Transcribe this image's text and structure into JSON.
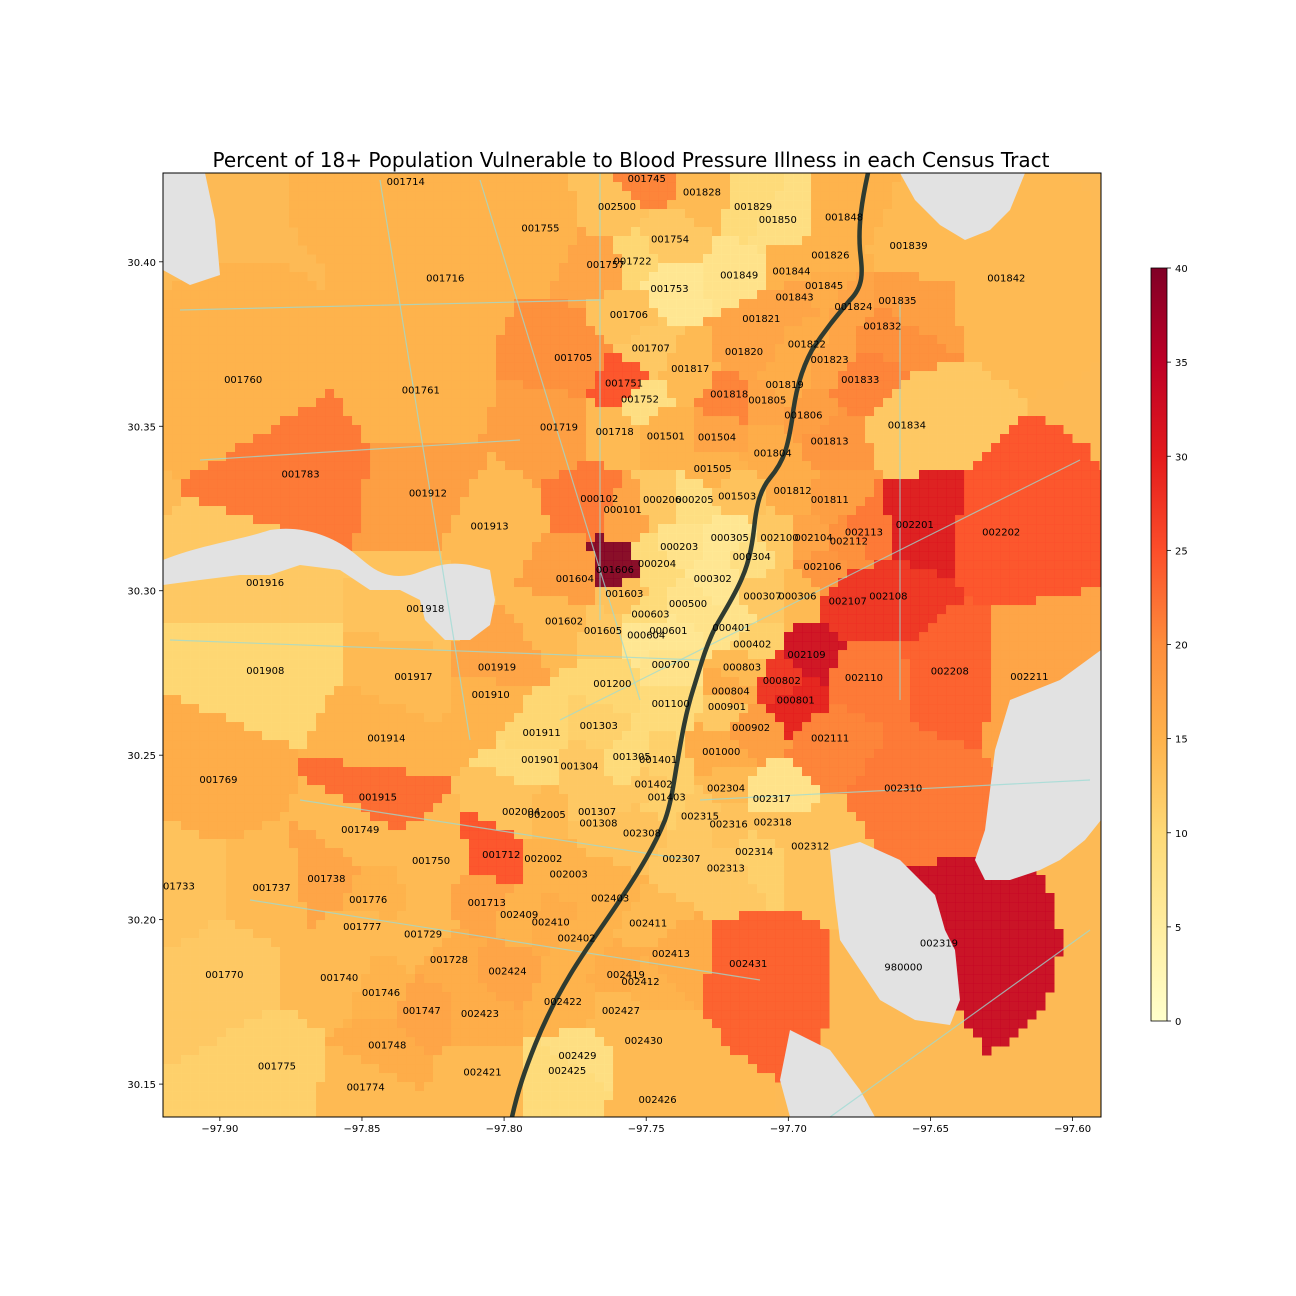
{
  "title": "Percent of 18+ Population Vulnerable to Blood Pressure Illness in each Census Tract",
  "map": {
    "lon_range": [
      -97.92,
      -97.59
    ],
    "lat_range": [
      30.14,
      30.427
    ],
    "x_ticks": [
      {
        "value": -97.9,
        "label": "−97.90"
      },
      {
        "value": -97.85,
        "label": "−97.85"
      },
      {
        "value": -97.8,
        "label": "−97.80"
      },
      {
        "value": -97.75,
        "label": "−97.75"
      },
      {
        "value": -97.7,
        "label": "−97.70"
      },
      {
        "value": -97.65,
        "label": "−97.65"
      },
      {
        "value": -97.6,
        "label": "−97.60"
      }
    ],
    "y_ticks": [
      {
        "value": 30.15,
        "label": "30.15"
      },
      {
        "value": 30.2,
        "label": "30.20"
      },
      {
        "value": 30.25,
        "label": "30.25"
      },
      {
        "value": 30.3,
        "label": "30.30"
      },
      {
        "value": 30.35,
        "label": "30.35"
      },
      {
        "value": 30.4,
        "label": "30.40"
      }
    ],
    "base_color": "#fdba55",
    "water_color": "#e2e2e2",
    "road_color": "#9bdbd4",
    "highway_color": "#2f3b30"
  },
  "colorbar": {
    "min": 0,
    "max": 40,
    "ticks": [
      0,
      5,
      10,
      15,
      20,
      25,
      30,
      35,
      40
    ],
    "colors": [
      "#ffffcc",
      "#ffeda0",
      "#fed976",
      "#feb24c",
      "#fd8d3c",
      "#fc4e2a",
      "#e31a1c",
      "#bd0026",
      "#800026"
    ]
  },
  "tracts": [
    {
      "id": "001714",
      "lon": -97.8346,
      "lat": 30.4242,
      "value": 15
    },
    {
      "id": "001745",
      "lon": -97.7498,
      "lat": 30.4252,
      "value": 21
    },
    {
      "id": "001828",
      "lon": -97.7304,
      "lat": 30.4211,
      "value": 14
    },
    {
      "id": "001829",
      "lon": -97.7124,
      "lat": 30.4166,
      "value": 9
    },
    {
      "id": "002500",
      "lon": -97.7603,
      "lat": 30.4166,
      "value": 13
    },
    {
      "id": "001850",
      "lon": -97.7037,
      "lat": 30.4127,
      "value": 8
    },
    {
      "id": "001848",
      "lon": -97.6804,
      "lat": 30.4134,
      "value": 15
    },
    {
      "id": "001755",
      "lon": -97.7872,
      "lat": 30.4102,
      "value": 15
    },
    {
      "id": "001754",
      "lon": -97.7416,
      "lat": 30.4068,
      "value": 12
    },
    {
      "id": "001839",
      "lon": -97.6577,
      "lat": 30.4048,
      "value": 14
    },
    {
      "id": "001826",
      "lon": -97.6852,
      "lat": 30.4019,
      "value": 15
    },
    {
      "id": "001757",
      "lon": -97.7643,
      "lat": 30.3991,
      "value": 17
    },
    {
      "id": "001722",
      "lon": -97.7548,
      "lat": 30.4001,
      "value": 10
    },
    {
      "id": "001849",
      "lon": -97.7173,
      "lat": 30.3959,
      "value": 7
    },
    {
      "id": "001844",
      "lon": -97.6989,
      "lat": 30.3971,
      "value": 15
    },
    {
      "id": "001716",
      "lon": -97.8207,
      "lat": 30.395,
      "value": 15
    },
    {
      "id": "001842",
      "lon": -97.6233,
      "lat": 30.395,
      "value": 14
    },
    {
      "id": "001845",
      "lon": -97.6874,
      "lat": 30.3926,
      "value": 16
    },
    {
      "id": "001753",
      "lon": -97.7418,
      "lat": 30.3918,
      "value": 6
    },
    {
      "id": "001843",
      "lon": -97.6978,
      "lat": 30.3891,
      "value": 17
    },
    {
      "id": "001835",
      "lon": -97.6616,
      "lat": 30.3881,
      "value": 18
    },
    {
      "id": "001824",
      "lon": -97.6771,
      "lat": 30.3863,
      "value": 17
    },
    {
      "id": "001706",
      "lon": -97.7561,
      "lat": 30.3839,
      "value": 13
    },
    {
      "id": "001821",
      "lon": -97.7095,
      "lat": 30.3826,
      "value": 17
    },
    {
      "id": "001832",
      "lon": -97.6669,
      "lat": 30.3803,
      "value": 20
    },
    {
      "id": "001822",
      "lon": -97.6935,
      "lat": 30.3748,
      "value": 16
    },
    {
      "id": "001707",
      "lon": -97.7484,
      "lat": 30.3736,
      "value": 12
    },
    {
      "id": "001820",
      "lon": -97.7156,
      "lat": 30.3726,
      "value": 17
    },
    {
      "id": "001705",
      "lon": -97.7757,
      "lat": 30.3707,
      "value": 20
    },
    {
      "id": "001823",
      "lon": -97.6855,
      "lat": 30.3702,
      "value": 17
    },
    {
      "id": "001817",
      "lon": -97.7345,
      "lat": 30.3674,
      "value": 14
    },
    {
      "id": "001760",
      "lon": -97.8918,
      "lat": 30.3641,
      "value": 15
    },
    {
      "id": "001833",
      "lon": -97.6747,
      "lat": 30.3641,
      "value": 21
    },
    {
      "id": "001751",
      "lon": -97.7578,
      "lat": 30.363,
      "value": 25
    },
    {
      "id": "001819",
      "lon": -97.7013,
      "lat": 30.3626,
      "value": 16
    },
    {
      "id": "001761",
      "lon": -97.8293,
      "lat": 30.3609,
      "value": 15
    },
    {
      "id": "001818",
      "lon": -97.7208,
      "lat": 30.3596,
      "value": 21
    },
    {
      "id": "001752",
      "lon": -97.7522,
      "lat": 30.3581,
      "value": 8
    },
    {
      "id": "001805",
      "lon": -97.7074,
      "lat": 30.3578,
      "value": 17
    },
    {
      "id": "001806",
      "lon": -97.6947,
      "lat": 30.3533,
      "value": 18
    },
    {
      "id": "001719",
      "lon": -97.7807,
      "lat": 30.3496,
      "value": 18
    },
    {
      "id": "001834",
      "lon": -97.6583,
      "lat": 30.3503,
      "value": 12
    },
    {
      "id": "001718",
      "lon": -97.7611,
      "lat": 30.3483,
      "value": 14
    },
    {
      "id": "001501",
      "lon": -97.7431,
      "lat": 30.3469,
      "value": 15
    },
    {
      "id": "001504",
      "lon": -97.7251,
      "lat": 30.3466,
      "value": 17
    },
    {
      "id": "001813",
      "lon": -97.6855,
      "lat": 30.3453,
      "value": 19
    },
    {
      "id": "001804",
      "lon": -97.7055,
      "lat": 30.3417,
      "value": 16
    },
    {
      "id": "001783",
      "lon": -97.8716,
      "lat": 30.3354,
      "value": 22
    },
    {
      "id": "001505",
      "lon": -97.7266,
      "lat": 30.337,
      "value": 15
    },
    {
      "id": "001812",
      "lon": -97.6985,
      "lat": 30.3303,
      "value": 16
    },
    {
      "id": "001912",
      "lon": -97.8268,
      "lat": 30.3296,
      "value": 18
    },
    {
      "id": "001503",
      "lon": -97.718,
      "lat": 30.3286,
      "value": 13
    },
    {
      "id": "001811",
      "lon": -97.6854,
      "lat": 30.3276,
      "value": 18
    },
    {
      "id": "000102",
      "lon": -97.7665,
      "lat": 30.3279,
      "value": 22
    },
    {
      "id": "000206",
      "lon": -97.7444,
      "lat": 30.3276,
      "value": 12
    },
    {
      "id": "000205",
      "lon": -97.733,
      "lat": 30.3276,
      "value": 8
    },
    {
      "id": "001913",
      "lon": -97.8051,
      "lat": 30.3195,
      "value": 14
    },
    {
      "id": "002201",
      "lon": -97.6555,
      "lat": 30.32,
      "value": 31
    },
    {
      "id": "000101",
      "lon": -97.7583,
      "lat": 30.3246,
      "value": 17
    },
    {
      "id": "002113",
      "lon": -97.6734,
      "lat": 30.3177,
      "value": 22
    },
    {
      "id": "002202",
      "lon": -97.6251,
      "lat": 30.3177,
      "value": 25
    },
    {
      "id": "000305",
      "lon": -97.7206,
      "lat": 30.316,
      "value": 6
    },
    {
      "id": "002100",
      "lon": -97.7031,
      "lat": 30.316,
      "value": 12
    },
    {
      "id": "002104",
      "lon": -97.6911,
      "lat": 30.316,
      "value": 17
    },
    {
      "id": "002112",
      "lon": -97.6787,
      "lat": 30.315,
      "value": 20
    },
    {
      "id": "000203",
      "lon": -97.7384,
      "lat": 30.3133,
      "value": 7
    },
    {
      "id": "000304",
      "lon": -97.7129,
      "lat": 30.3103,
      "value": 8
    },
    {
      "id": "002106",
      "lon": -97.688,
      "lat": 30.3072,
      "value": 19
    },
    {
      "id": "000204",
      "lon": -97.7462,
      "lat": 30.3081,
      "value": 9
    },
    {
      "id": "001606",
      "lon": -97.761,
      "lat": 30.3063,
      "value": 40
    },
    {
      "id": "001604",
      "lon": -97.7751,
      "lat": 30.3036,
      "value": 18
    },
    {
      "id": "000302",
      "lon": -97.7266,
      "lat": 30.3036,
      "value": 6
    },
    {
      "id": "001916",
      "lon": -97.8841,
      "lat": 30.3023,
      "value": 12
    },
    {
      "id": "001603",
      "lon": -97.7577,
      "lat": 30.299,
      "value": 13
    },
    {
      "id": "000307",
      "lon": -97.7091,
      "lat": 30.2982,
      "value": 12
    },
    {
      "id": "000306",
      "lon": -97.6968,
      "lat": 30.2982,
      "value": 14
    },
    {
      "id": "002107",
      "lon": -97.6791,
      "lat": 30.2968,
      "value": 28
    },
    {
      "id": "002108",
      "lon": -97.6648,
      "lat": 30.2982,
      "value": 28
    },
    {
      "id": "000500",
      "lon": -97.7353,
      "lat": 30.296,
      "value": 7
    },
    {
      "id": "001918",
      "lon": -97.8277,
      "lat": 30.2945,
      "value": 13
    },
    {
      "id": "000603",
      "lon": -97.7485,
      "lat": 30.2927,
      "value": 9
    },
    {
      "id": "001602",
      "lon": -97.7789,
      "lat": 30.2907,
      "value": 14
    },
    {
      "id": "000401",
      "lon": -97.72,
      "lat": 30.2887,
      "value": 7
    },
    {
      "id": "000601",
      "lon": -97.7422,
      "lat": 30.2877,
      "value": 6
    },
    {
      "id": "001605",
      "lon": -97.7652,
      "lat": 30.2877,
      "value": 12
    },
    {
      "id": "000604",
      "lon": -97.75,
      "lat": 30.2864,
      "value": 6
    },
    {
      "id": "000402",
      "lon": -97.7127,
      "lat": 30.2837,
      "value": 11
    },
    {
      "id": "002109",
      "lon": -97.6936,
      "lat": 30.2805,
      "value": 33
    },
    {
      "id": "000700",
      "lon": -97.7414,
      "lat": 30.2774,
      "value": 7
    },
    {
      "id": "000803",
      "lon": -97.7163,
      "lat": 30.2766,
      "value": 14
    },
    {
      "id": "001919",
      "lon": -97.8025,
      "lat": 30.2766,
      "value": 17
    },
    {
      "id": "001908",
      "lon": -97.884,
      "lat": 30.2756,
      "value": 10
    },
    {
      "id": "001917",
      "lon": -97.8319,
      "lat": 30.2738,
      "value": 14
    },
    {
      "id": "002208",
      "lon": -97.6432,
      "lat": 30.2754,
      "value": 24
    },
    {
      "id": "002110",
      "lon": -97.6734,
      "lat": 30.2734,
      "value": 22
    },
    {
      "id": "002211",
      "lon": -97.6152,
      "lat": 30.2738,
      "value": 17
    },
    {
      "id": "000802",
      "lon": -97.7023,
      "lat": 30.2726,
      "value": 28
    },
    {
      "id": "001200",
      "lon": -97.7619,
      "lat": 30.2717,
      "value": 10
    },
    {
      "id": "000804",
      "lon": -97.7203,
      "lat": 30.2693,
      "value": 16
    },
    {
      "id": "001910",
      "lon": -97.8047,
      "lat": 30.2683,
      "value": 15
    },
    {
      "id": "001100",
      "lon": -97.7414,
      "lat": 30.2656,
      "value": 9
    },
    {
      "id": "000801",
      "lon": -97.6974,
      "lat": 30.2666,
      "value": 30
    },
    {
      "id": "000901",
      "lon": -97.7216,
      "lat": 30.2647,
      "value": 12
    },
    {
      "id": "001303",
      "lon": -97.7667,
      "lat": 30.2589,
      "value": 11
    },
    {
      "id": "000902",
      "lon": -97.7131,
      "lat": 30.2583,
      "value": 18
    },
    {
      "id": "001911",
      "lon": -97.7868,
      "lat": 30.2568,
      "value": 10
    },
    {
      "id": "001914",
      "lon": -97.8414,
      "lat": 30.2551,
      "value": 15
    },
    {
      "id": "002111",
      "lon": -97.6853,
      "lat": 30.2551,
      "value": 21
    },
    {
      "id": "001000",
      "lon": -97.7236,
      "lat": 30.251,
      "value": 16
    },
    {
      "id": "001305",
      "lon": -97.7551,
      "lat": 30.2495,
      "value": 9
    },
    {
      "id": "001401",
      "lon": -97.7458,
      "lat": 30.2485,
      "value": 11
    },
    {
      "id": "001901",
      "lon": -97.7873,
      "lat": 30.2485,
      "value": 9
    },
    {
      "id": "001304",
      "lon": -97.7735,
      "lat": 30.2466,
      "value": 12
    },
    {
      "id": "001769",
      "lon": -97.9005,
      "lat": 30.2425,
      "value": 16
    },
    {
      "id": "001402",
      "lon": -97.7474,
      "lat": 30.2411,
      "value": 12
    },
    {
      "id": "002304",
      "lon": -97.7219,
      "lat": 30.2398,
      "value": 14
    },
    {
      "id": "002310",
      "lon": -97.6596,
      "lat": 30.2398,
      "value": 22
    },
    {
      "id": "001403",
      "lon": -97.7428,
      "lat": 30.2372,
      "value": 11
    },
    {
      "id": "002317",
      "lon": -97.7058,
      "lat": 30.2367,
      "value": 7
    },
    {
      "id": "001915",
      "lon": -97.8444,
      "lat": 30.2371,
      "value": 23
    },
    {
      "id": "002004",
      "lon": -97.794,
      "lat": 30.2328,
      "value": 13
    },
    {
      "id": "001307",
      "lon": -97.7673,
      "lat": 30.2328,
      "value": 12
    },
    {
      "id": "002005",
      "lon": -97.785,
      "lat": 30.2318,
      "value": 14
    },
    {
      "id": "002315",
      "lon": -97.7311,
      "lat": 30.2313,
      "value": 12
    },
    {
      "id": "002316",
      "lon": -97.721,
      "lat": 30.229,
      "value": 13
    },
    {
      "id": "002318",
      "lon": -97.7055,
      "lat": 30.2295,
      "value": 13
    },
    {
      "id": "001308",
      "lon": -97.7668,
      "lat": 30.2292,
      "value": 13
    },
    {
      "id": "001749",
      "lon": -97.8506,
      "lat": 30.2272,
      "value": 14
    },
    {
      "id": "002308",
      "lon": -97.7515,
      "lat": 30.2262,
      "value": 13
    },
    {
      "id": "002312",
      "lon": -97.6923,
      "lat": 30.2222,
      "value": 13
    },
    {
      "id": "001712",
      "lon": -97.801,
      "lat": 30.2196,
      "value": 25
    },
    {
      "id": "002314",
      "lon": -97.712,
      "lat": 30.2206,
      "value": 11
    },
    {
      "id": "001750",
      "lon": -97.8257,
      "lat": 30.2179,
      "value": 14
    },
    {
      "id": "002002",
      "lon": -97.7862,
      "lat": 30.2184,
      "value": 15
    },
    {
      "id": "002307",
      "lon": -97.7376,
      "lat": 30.2184,
      "value": 12
    },
    {
      "id": "002313",
      "lon": -97.722,
      "lat": 30.2155,
      "value": 12
    },
    {
      "id": "002003",
      "lon": -97.7773,
      "lat": 30.2137,
      "value": 15
    },
    {
      "id": "001738",
      "lon": -97.8625,
      "lat": 30.2124,
      "value": 17
    },
    {
      "id": "001737",
      "lon": -97.8818,
      "lat": 30.2096,
      "value": 14
    },
    {
      "id": "001733",
      "lon": -97.9155,
      "lat": 30.2101,
      "value": 13
    },
    {
      "id": "002403",
      "lon": -97.7627,
      "lat": 30.2064,
      "value": 15
    },
    {
      "id": "001776",
      "lon": -97.8478,
      "lat": 30.206,
      "value": 15
    },
    {
      "id": "001713",
      "lon": -97.8061,
      "lat": 30.2051,
      "value": 17
    },
    {
      "id": "002409",
      "lon": -97.7947,
      "lat": 30.2014,
      "value": 15
    },
    {
      "id": "002411",
      "lon": -97.7493,
      "lat": 30.1988,
      "value": 14
    },
    {
      "id": "002410",
      "lon": -97.7836,
      "lat": 30.1992,
      "value": 16
    },
    {
      "id": "001777",
      "lon": -97.8499,
      "lat": 30.1978,
      "value": 14
    },
    {
      "id": "001729",
      "lon": -97.8285,
      "lat": 30.1955,
      "value": 14
    },
    {
      "id": "002402",
      "lon": -97.7745,
      "lat": 30.1942,
      "value": 15
    },
    {
      "id": "002319",
      "lon": -97.647,
      "lat": 30.1928,
      "value": 34
    },
    {
      "id": "002413",
      "lon": -97.7413,
      "lat": 30.1896,
      "value": 16
    },
    {
      "id": "001728",
      "lon": -97.8194,
      "lat": 30.1878,
      "value": 16
    },
    {
      "id": "002431",
      "lon": -97.7141,
      "lat": 30.1865,
      "value": 24
    },
    {
      "id": "980000",
      "lon": -97.6595,
      "lat": 30.1855,
      "value": 0
    },
    {
      "id": "002424",
      "lon": -97.7988,
      "lat": 30.1842,
      "value": 17
    },
    {
      "id": "001770",
      "lon": -97.8984,
      "lat": 30.1832,
      "value": 12
    },
    {
      "id": "002419",
      "lon": -97.7572,
      "lat": 30.1832,
      "value": 16
    },
    {
      "id": "001740",
      "lon": -97.858,
      "lat": 30.1823,
      "value": 14
    },
    {
      "id": "002412",
      "lon": -97.752,
      "lat": 30.181,
      "value": 15
    },
    {
      "id": "001746",
      "lon": -97.8433,
      "lat": 30.1777,
      "value": 15
    },
    {
      "id": "002422",
      "lon": -97.7793,
      "lat": 30.175,
      "value": 15
    },
    {
      "id": "001747",
      "lon": -97.829,
      "lat": 30.1722,
      "value": 17
    },
    {
      "id": "002427",
      "lon": -97.7589,
      "lat": 30.1722,
      "value": 14
    },
    {
      "id": "002423",
      "lon": -97.8085,
      "lat": 30.1713,
      "value": 16
    },
    {
      "id": "002430",
      "lon": -97.7509,
      "lat": 30.1631,
      "value": 14
    },
    {
      "id": "001748",
      "lon": -97.8411,
      "lat": 30.1617,
      "value": 16
    },
    {
      "id": "002429",
      "lon": -97.7742,
      "lat": 30.1585,
      "value": 8
    },
    {
      "id": "001775",
      "lon": -97.8799,
      "lat": 30.1553,
      "value": 11
    },
    {
      "id": "002425",
      "lon": -97.7778,
      "lat": 30.154,
      "value": 9
    },
    {
      "id": "002421",
      "lon": -97.8076,
      "lat": 30.1535,
      "value": 14
    },
    {
      "id": "001774",
      "lon": -97.8487,
      "lat": 30.1489,
      "value": 14
    },
    {
      "id": "002426",
      "lon": -97.746,
      "lat": 30.1452,
      "value": 14
    }
  ]
}
